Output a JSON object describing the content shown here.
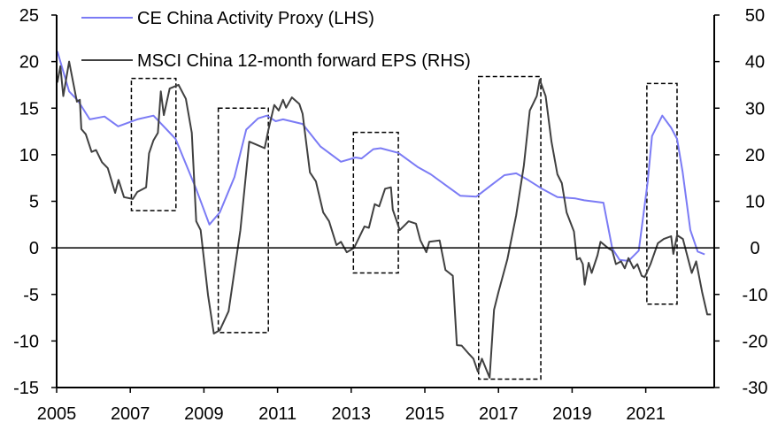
{
  "chart_data": {
    "type": "line",
    "title": "",
    "xlim": [
      2005,
      2022.86
    ],
    "x_ticks": [
      "2005",
      "2007",
      "2009",
      "2011",
      "2013",
      "2015",
      "2017",
      "2019",
      "2021"
    ],
    "y_left": {
      "range": [
        -15,
        25
      ],
      "ticks": [
        "25",
        "20",
        "15",
        "10",
        "5",
        "0",
        "-5",
        "-10",
        "-15"
      ]
    },
    "y_right": {
      "range": [
        -30,
        50
      ],
      "ticks": [
        "50",
        "40",
        "30",
        "20",
        "10",
        "0",
        "-10",
        "-20",
        "-30"
      ]
    },
    "legend_position": "top-left",
    "colors": {
      "activity": "#7b7bf5",
      "eps": "#404040"
    },
    "series": [
      {
        "name": "CE China Activity Proxy (LHS)",
        "axis": "left",
        "points": [
          [
            2005.02,
            21.1
          ],
          [
            2005.34,
            16.8
          ],
          [
            2005.58,
            15.8
          ],
          [
            2005.9,
            13.8
          ],
          [
            2006.3,
            14.1
          ],
          [
            2006.67,
            13.05
          ],
          [
            2007.19,
            13.8
          ],
          [
            2007.63,
            14.2
          ],
          [
            2008.23,
            11.7
          ],
          [
            2008.79,
            6.3
          ],
          [
            2009.15,
            2.5
          ],
          [
            2009.43,
            3.8
          ],
          [
            2009.83,
            7.6
          ],
          [
            2010.15,
            12.7
          ],
          [
            2010.47,
            13.9
          ],
          [
            2010.71,
            14.2
          ],
          [
            2010.95,
            13.6
          ],
          [
            2011.15,
            13.8
          ],
          [
            2011.68,
            13.3
          ],
          [
            2012.16,
            10.9
          ],
          [
            2012.72,
            9.25
          ],
          [
            2013.12,
            9.7
          ],
          [
            2013.28,
            9.6
          ],
          [
            2013.6,
            10.6
          ],
          [
            2013.8,
            10.7
          ],
          [
            2014.28,
            10.2
          ],
          [
            2014.8,
            8.7
          ],
          [
            2015.16,
            7.9
          ],
          [
            2015.96,
            5.6
          ],
          [
            2016.4,
            5.5
          ],
          [
            2016.76,
            6.6
          ],
          [
            2017.16,
            7.8
          ],
          [
            2017.48,
            8.0
          ],
          [
            2017.8,
            7.3
          ],
          [
            2018.2,
            6.3
          ],
          [
            2018.6,
            5.45
          ],
          [
            2019.09,
            5.3
          ],
          [
            2019.33,
            5.1
          ],
          [
            2019.85,
            4.85
          ],
          [
            2020.09,
            -0.07
          ],
          [
            2020.29,
            -1.3
          ],
          [
            2020.53,
            -1.4
          ],
          [
            2020.81,
            -0.3
          ],
          [
            2021.05,
            7.0
          ],
          [
            2021.17,
            12.0
          ],
          [
            2021.45,
            14.2
          ],
          [
            2021.69,
            12.9
          ],
          [
            2021.85,
            11.7
          ],
          [
            2022.0,
            8.2
          ],
          [
            2022.21,
            1.9
          ],
          [
            2022.41,
            -0.4
          ],
          [
            2022.6,
            -0.7
          ]
        ]
      },
      {
        "name": "MSCI China 12-month forward EPS (RHS)",
        "axis": "right",
        "points": [
          [
            2005.02,
            35.5
          ],
          [
            2005.1,
            39
          ],
          [
            2005.18,
            32.6
          ],
          [
            2005.34,
            40
          ],
          [
            2005.55,
            31.4
          ],
          [
            2005.63,
            31.8
          ],
          [
            2005.67,
            25.5
          ],
          [
            2005.79,
            24.4
          ],
          [
            2005.95,
            20.6
          ],
          [
            2006.07,
            21.0
          ],
          [
            2006.23,
            18.4
          ],
          [
            2006.39,
            17.1
          ],
          [
            2006.59,
            11.8
          ],
          [
            2006.68,
            14.6
          ],
          [
            2006.83,
            10.9
          ],
          [
            2007.07,
            10.5
          ],
          [
            2007.19,
            12.0
          ],
          [
            2007.43,
            13.0
          ],
          [
            2007.51,
            20.3
          ],
          [
            2007.63,
            23.1
          ],
          [
            2007.75,
            24.7
          ],
          [
            2007.83,
            33.6
          ],
          [
            2007.91,
            28.5
          ],
          [
            2008.07,
            34.2
          ],
          [
            2008.31,
            35
          ],
          [
            2008.51,
            32
          ],
          [
            2008.67,
            24.7
          ],
          [
            2008.79,
            5.7
          ],
          [
            2008.91,
            3.8
          ],
          [
            2009.11,
            -10.1
          ],
          [
            2009.27,
            -18.4
          ],
          [
            2009.43,
            -17.7
          ],
          [
            2009.67,
            -13.6
          ],
          [
            2009.99,
            3.8
          ],
          [
            2010.23,
            22.8
          ],
          [
            2010.39,
            22.3
          ],
          [
            2010.65,
            21.4
          ],
          [
            2010.75,
            25.3
          ],
          [
            2010.91,
            30.7
          ],
          [
            2011.03,
            29.5
          ],
          [
            2011.15,
            31.8
          ],
          [
            2011.23,
            30.1
          ],
          [
            2011.39,
            32.3
          ],
          [
            2011.59,
            30.9
          ],
          [
            2011.68,
            28.8
          ],
          [
            2011.88,
            16.2
          ],
          [
            2012.04,
            14.3
          ],
          [
            2012.24,
            7.6
          ],
          [
            2012.4,
            5.7
          ],
          [
            2012.6,
            0.6
          ],
          [
            2012.72,
            1.3
          ],
          [
            2012.88,
            -0.95
          ],
          [
            2013.08,
            0
          ],
          [
            2013.36,
            4.6
          ],
          [
            2013.48,
            4.3
          ],
          [
            2013.64,
            9.4
          ],
          [
            2013.76,
            8.9
          ],
          [
            2013.92,
            12.7
          ],
          [
            2014.08,
            13.0
          ],
          [
            2014.13,
            8.2
          ],
          [
            2014.32,
            3.8
          ],
          [
            2014.56,
            5.7
          ],
          [
            2014.76,
            5.2
          ],
          [
            2014.88,
            1.6
          ],
          [
            2015.04,
            -0.95
          ],
          [
            2015.12,
            1.3
          ],
          [
            2015.4,
            1.6
          ],
          [
            2015.56,
            -4.75
          ],
          [
            2015.76,
            -6.0
          ],
          [
            2015.87,
            -20.9
          ],
          [
            2016.0,
            -21.0
          ],
          [
            2016.2,
            -22.8
          ],
          [
            2016.32,
            -23.8
          ],
          [
            2016.44,
            -26.6
          ],
          [
            2016.55,
            -23.8
          ],
          [
            2016.76,
            -27.9
          ],
          [
            2016.88,
            -13.3
          ],
          [
            2017.0,
            -9.5
          ],
          [
            2017.24,
            -2.5
          ],
          [
            2017.48,
            7.0
          ],
          [
            2017.69,
            17.7
          ],
          [
            2017.85,
            29.5
          ],
          [
            2018.04,
            32.6
          ],
          [
            2018.12,
            36.1
          ],
          [
            2018.28,
            32.6
          ],
          [
            2018.44,
            22.8
          ],
          [
            2018.6,
            15.8
          ],
          [
            2018.72,
            13.9
          ],
          [
            2018.85,
            7.6
          ],
          [
            2019.05,
            3.5
          ],
          [
            2019.13,
            -2.5
          ],
          [
            2019.21,
            -2.2
          ],
          [
            2019.29,
            -3.5
          ],
          [
            2019.34,
            -7.9
          ],
          [
            2019.45,
            -3.2
          ],
          [
            2019.53,
            -5.4
          ],
          [
            2019.69,
            -1.6
          ],
          [
            2019.77,
            1.3
          ],
          [
            2019.97,
            0
          ],
          [
            2020.09,
            -0.6
          ],
          [
            2020.19,
            -3.5
          ],
          [
            2020.33,
            -2.9
          ],
          [
            2020.43,
            -4.4
          ],
          [
            2020.53,
            -2.2
          ],
          [
            2020.67,
            -4.4
          ],
          [
            2020.77,
            -3.5
          ],
          [
            2020.89,
            -6.0
          ],
          [
            2020.97,
            -6.3
          ],
          [
            2021.13,
            -3.5
          ],
          [
            2021.33,
            1.0
          ],
          [
            2021.49,
            1.9
          ],
          [
            2021.69,
            2.5
          ],
          [
            2021.75,
            -1.3
          ],
          [
            2021.85,
            2.7
          ],
          [
            2022.01,
            1.9
          ],
          [
            2022.25,
            -5.4
          ],
          [
            2022.37,
            -2.9
          ],
          [
            2022.53,
            -9.5
          ],
          [
            2022.67,
            -14.3
          ],
          [
            2022.77,
            -14.3
          ]
        ]
      }
    ],
    "annotations": {
      "dashed_boxes_lhs_units": [
        {
          "x": [
            2007.03,
            2008.24
          ],
          "y": [
            4.0,
            18.2
          ]
        },
        {
          "x": [
            2009.39,
            2010.75
          ],
          "y": [
            -9.1,
            15.0
          ]
        },
        {
          "x": [
            2013.06,
            2014.28
          ],
          "y": [
            -2.7,
            12.4
          ]
        },
        {
          "x": [
            2016.46,
            2018.15
          ],
          "y": [
            -14.1,
            18.4
          ]
        },
        {
          "x": [
            2021.03,
            2021.85
          ],
          "y": [
            -6.05,
            17.65
          ]
        }
      ]
    }
  }
}
